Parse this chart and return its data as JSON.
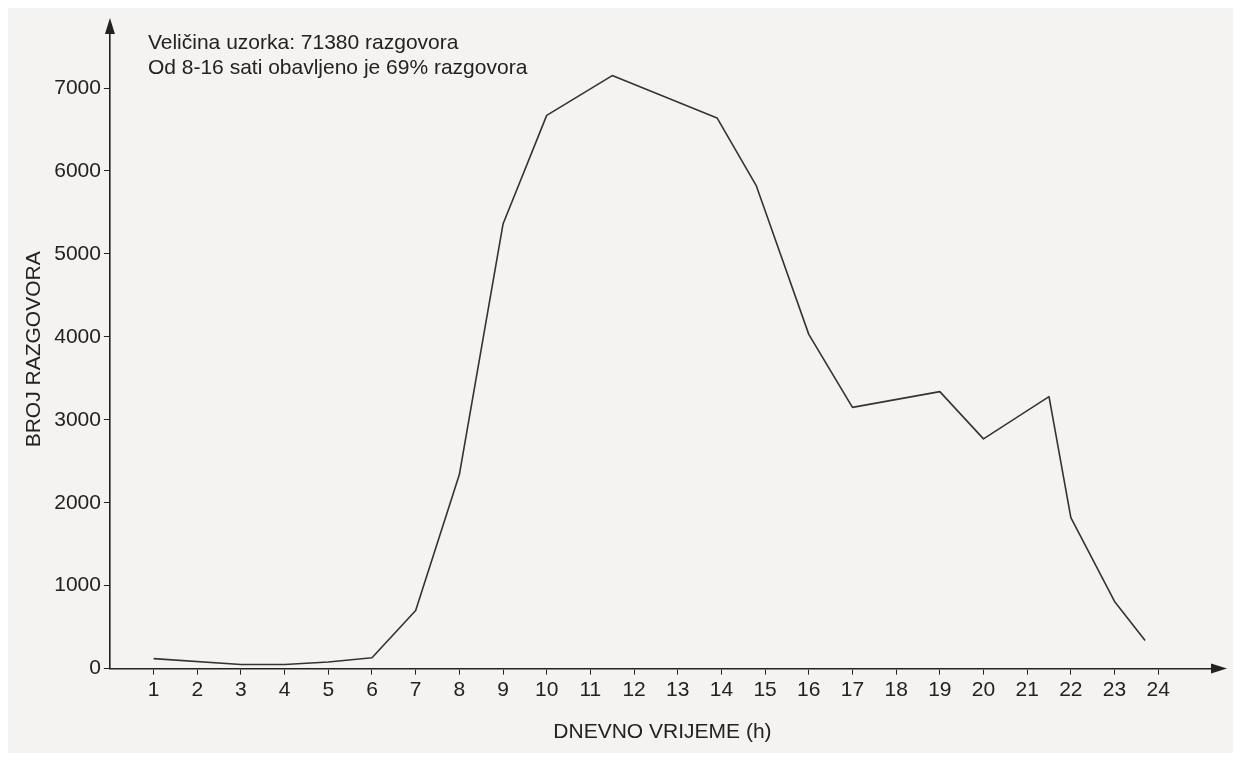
{
  "chart_data": {
    "type": "line",
    "xlabel": "DNEVNO VRIJEME (h)",
    "ylabel": "BROJ RAZGOVORA",
    "annotations": [
      "Veličina uzorka: 71380 razgovora",
      "Od 8-16 sati obavljeno je 69% razgovora"
    ],
    "x": [
      1,
      3,
      4,
      5,
      6,
      7,
      8,
      9,
      10,
      11.5,
      13.9,
      14.8,
      16,
      17,
      19,
      20,
      21.5,
      22,
      23,
      23.7
    ],
    "series": [
      {
        "color": "#333333",
        "values": [
          120,
          50,
          50,
          80,
          130,
          700,
          2340,
          5360,
          6670,
          7150,
          6640,
          5820,
          4030,
          3150,
          3340,
          2770,
          3280,
          1820,
          810,
          340
        ]
      }
    ],
    "xlim": [
      0,
      25.3
    ],
    "xticks": [
      1,
      2,
      3,
      4,
      5,
      6,
      7,
      8,
      9,
      10,
      11,
      12,
      13,
      14,
      15,
      16,
      17,
      18,
      19,
      20,
      21,
      22,
      23,
      24
    ],
    "ylim": [
      0,
      7700
    ],
    "yticks": [
      0,
      1000,
      2000,
      3000,
      4000,
      5000,
      6000,
      7000
    ],
    "grid": false,
    "legend": false,
    "marker": "none",
    "line_style": "solid"
  }
}
